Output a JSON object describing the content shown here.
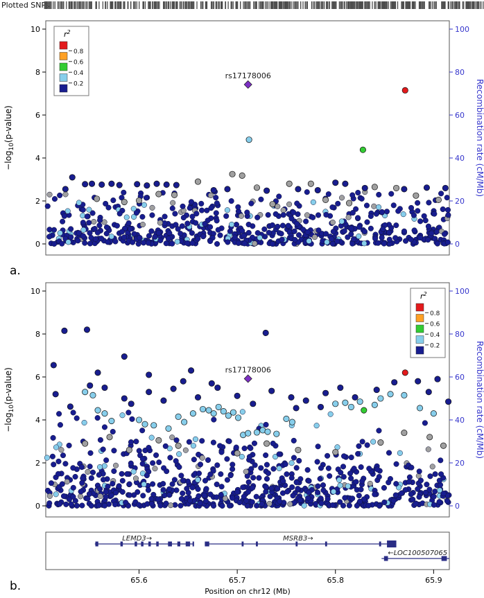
{
  "page": {
    "panel_a_label": "a.",
    "panel_b_label": "b."
  },
  "rug": {
    "label": "Plotted SNPs",
    "tick_count": 520,
    "seed": 7
  },
  "colors": {
    "r2_080_100": "#e31a1c",
    "r2_060_080": "#ffa024",
    "r2_040_060": "#33cc33",
    "r2_020_040": "#87ceeb",
    "r2_000_020": "#181d8f",
    "no_r2": "#a0a0a0",
    "lead": "#7c2fc4",
    "recomb_axis": "#3535cc",
    "rug_tick": "#4d4d4d",
    "gene": "#2a2d85",
    "frame": "#555555"
  },
  "legend": {
    "title_base": "r",
    "title_sup": "2",
    "swatch_colors": [
      "#e31a1c",
      "#ffa024",
      "#33cc33",
      "#87ceeb",
      "#181d8f"
    ],
    "boundary_labels": [
      "0.8",
      "0.6",
      "0.4",
      "0.2"
    ]
  },
  "axes": {
    "xlabel": "Position on chr12 (Mb)",
    "ylabel_parts": {
      "pre": "−log",
      "sub": "10",
      "post": "(p-value)"
    },
    "y2label": "Recombination rate (cM/Mb)",
    "xticks": [
      65.6,
      65.7,
      65.8,
      65.9
    ],
    "yticks": [
      0,
      2,
      4,
      6,
      8,
      10
    ],
    "y2ticks": [
      0,
      20,
      40,
      60,
      80,
      100
    ],
    "xlim": [
      65.505,
      65.916
    ],
    "ylim": [
      0,
      10.4
    ],
    "y2lim": [
      0,
      104
    ]
  },
  "chart_data": [
    {
      "id": "panelA",
      "type": "scatter",
      "seed": 101,
      "legend_pos": "left",
      "lead": {
        "x": 65.711,
        "y": 7.42,
        "label": "rs17178006"
      },
      "points": [
        [
          65.557,
          2.1,
          "na"
        ],
        [
          65.585,
          1.95,
          "na"
        ],
        [
          65.6,
          2.02,
          "na"
        ],
        [
          65.62,
          2.32,
          "na"
        ],
        [
          65.636,
          2.28,
          "na"
        ],
        [
          65.66,
          2.9,
          "na"
        ],
        [
          65.695,
          3.25,
          "na"
        ],
        [
          65.705,
          3.18,
          "na"
        ],
        [
          65.72,
          2.62,
          "na"
        ],
        [
          65.736,
          1.85,
          "na"
        ],
        [
          65.753,
          2.8,
          "na"
        ],
        [
          65.775,
          2.8,
          "na"
        ],
        [
          65.79,
          2.05,
          "na"
        ],
        [
          65.814,
          1.9,
          "na"
        ],
        [
          65.84,
          2.65,
          "na"
        ],
        [
          65.862,
          2.6,
          "na"
        ],
        [
          65.882,
          2.25,
          "na"
        ],
        [
          65.905,
          2.05,
          "na"
        ],
        [
          65.525,
          2.55,
          "r00"
        ],
        [
          65.532,
          3.1,
          "r00"
        ],
        [
          65.545,
          2.78,
          "r00"
        ],
        [
          65.552,
          2.8,
          "r00"
        ],
        [
          65.562,
          2.76,
          "r00"
        ],
        [
          65.572,
          2.8,
          "r00"
        ],
        [
          65.58,
          2.74,
          "r00"
        ],
        [
          65.598,
          2.78,
          "r00"
        ],
        [
          65.608,
          2.72,
          "r00"
        ],
        [
          65.618,
          2.8,
          "r00"
        ],
        [
          65.628,
          2.76,
          "r00"
        ],
        [
          65.638,
          2.74,
          "r00"
        ],
        [
          65.676,
          2.5,
          "r00"
        ],
        [
          65.69,
          2.55,
          "r00"
        ],
        [
          65.73,
          2.48,
          "r00"
        ],
        [
          65.762,
          2.55,
          "r00"
        ],
        [
          65.782,
          2.5,
          "r00"
        ],
        [
          65.8,
          2.85,
          "r00"
        ],
        [
          65.81,
          2.8,
          "r00"
        ],
        [
          65.83,
          2.6,
          "r00"
        ],
        [
          65.87,
          2.55,
          "r00"
        ],
        [
          65.893,
          2.62,
          "r00"
        ],
        [
          65.912,
          2.6,
          "r00"
        ],
        [
          65.712,
          4.85,
          "r02"
        ],
        [
          65.828,
          4.38,
          "r04"
        ],
        [
          65.871,
          7.15,
          "r08"
        ]
      ],
      "background": [
        {
          "count": 430,
          "y": [
            0,
            0.9
          ],
          "power": 1.4,
          "mix": {
            "r00": 0.9,
            "r02": 0.07,
            "na": 0.03
          }
        },
        {
          "count": 160,
          "y": [
            0.9,
            1.8
          ],
          "power": 1,
          "mix": {
            "r00": 0.75,
            "r02": 0.12,
            "na": 0.13
          }
        },
        {
          "count": 55,
          "y": [
            1.8,
            2.45
          ],
          "power": 1,
          "mix": {
            "r00": 0.72,
            "r02": 0.08,
            "na": 0.2
          }
        }
      ]
    },
    {
      "id": "panelB",
      "type": "scatter",
      "seed": 202,
      "legend_pos": "right",
      "lead": {
        "x": 65.711,
        "y": 5.92,
        "label": "rs17178006"
      },
      "points": [
        [
          65.545,
          2.9,
          "na"
        ],
        [
          65.57,
          3.2,
          "na"
        ],
        [
          65.59,
          2.6,
          "na"
        ],
        [
          65.62,
          3.05,
          "na"
        ],
        [
          65.64,
          2.8,
          "na"
        ],
        [
          65.7,
          2.45,
          "na"
        ],
        [
          65.73,
          2.9,
          "na"
        ],
        [
          65.762,
          2.6,
          "na"
        ],
        [
          65.8,
          2.5,
          "na"
        ],
        [
          65.846,
          2.95,
          "na"
        ],
        [
          65.87,
          3.4,
          "na"
        ],
        [
          65.896,
          3.2,
          "na"
        ],
        [
          65.91,
          2.8,
          "na"
        ],
        [
          65.524,
          8.15,
          "r00"
        ],
        [
          65.547,
          8.2,
          "r00"
        ],
        [
          65.729,
          8.05,
          "r00"
        ],
        [
          65.513,
          6.55,
          "r00"
        ],
        [
          65.585,
          6.95,
          "r00"
        ],
        [
          65.653,
          6.3,
          "r00"
        ],
        [
          65.558,
          6.2,
          "r00"
        ],
        [
          65.61,
          6.1,
          "r00"
        ],
        [
          65.645,
          5.8,
          "r00"
        ],
        [
          65.674,
          5.7,
          "r00"
        ],
        [
          65.884,
          5.8,
          "r00"
        ],
        [
          65.904,
          5.9,
          "r00"
        ],
        [
          65.515,
          5.2,
          "r00"
        ],
        [
          65.53,
          4.62,
          "r00"
        ],
        [
          65.55,
          5.6,
          "r00"
        ],
        [
          65.565,
          5.5,
          "r00"
        ],
        [
          65.585,
          5.0,
          "r00"
        ],
        [
          65.592,
          4.75,
          "r00"
        ],
        [
          65.61,
          5.3,
          "r00"
        ],
        [
          65.625,
          4.9,
          "r00"
        ],
        [
          65.635,
          5.45,
          "r00"
        ],
        [
          65.66,
          5.05,
          "r00"
        ],
        [
          65.68,
          5.5,
          "r00"
        ],
        [
          65.7,
          5.12,
          "r00"
        ],
        [
          65.716,
          4.75,
          "r00"
        ],
        [
          65.735,
          5.35,
          "r00"
        ],
        [
          65.755,
          5.05,
          "r00"
        ],
        [
          65.76,
          4.55,
          "r00"
        ],
        [
          65.77,
          4.9,
          "r00"
        ],
        [
          65.785,
          4.6,
          "r00"
        ],
        [
          65.79,
          5.25,
          "r00"
        ],
        [
          65.805,
          5.5,
          "r00"
        ],
        [
          65.82,
          5.05,
          "r00"
        ],
        [
          65.842,
          5.4,
          "r00"
        ],
        [
          65.86,
          5.75,
          "r00"
        ],
        [
          65.895,
          5.3,
          "r00"
        ],
        [
          65.915,
          4.85,
          "r00"
        ],
        [
          65.545,
          5.3,
          "r02"
        ],
        [
          65.553,
          5.15,
          "r02"
        ],
        [
          65.558,
          4.45,
          "r02"
        ],
        [
          65.565,
          4.3,
          "r02"
        ],
        [
          65.572,
          3.95,
          "r02"
        ],
        [
          65.6,
          4.0,
          "r02"
        ],
        [
          65.606,
          3.8,
          "r02"
        ],
        [
          65.615,
          3.75,
          "r02"
        ],
        [
          65.63,
          3.6,
          "r02"
        ],
        [
          65.64,
          4.15,
          "r02"
        ],
        [
          65.646,
          3.9,
          "r02"
        ],
        [
          65.655,
          4.3,
          "r02"
        ],
        [
          65.665,
          4.5,
          "r02"
        ],
        [
          65.671,
          4.45,
          "r02"
        ],
        [
          65.676,
          4.3,
          "r02"
        ],
        [
          65.681,
          4.6,
          "r02"
        ],
        [
          65.686,
          4.4,
          "r02"
        ],
        [
          65.691,
          4.2,
          "r02"
        ],
        [
          65.696,
          4.35,
          "r02"
        ],
        [
          65.701,
          4.1,
          "r02"
        ],
        [
          65.706,
          3.3,
          "r02"
        ],
        [
          65.711,
          3.38,
          "r02"
        ],
        [
          65.72,
          3.42,
          "r02"
        ],
        [
          65.726,
          3.52,
          "r02"
        ],
        [
          65.731,
          3.45,
          "r02"
        ],
        [
          65.74,
          3.35,
          "r02"
        ],
        [
          65.75,
          4.05,
          "r02"
        ],
        [
          65.756,
          3.9,
          "r02"
        ],
        [
          65.8,
          4.75,
          "r02"
        ],
        [
          65.81,
          4.8,
          "r02"
        ],
        [
          65.816,
          4.6,
          "r02"
        ],
        [
          65.825,
          4.85,
          "r02"
        ],
        [
          65.84,
          4.7,
          "r02"
        ],
        [
          65.846,
          5.0,
          "r02"
        ],
        [
          65.856,
          5.2,
          "r02"
        ],
        [
          65.87,
          5.15,
          "r02"
        ],
        [
          65.886,
          4.55,
          "r02"
        ],
        [
          65.9,
          4.3,
          "r02"
        ],
        [
          65.829,
          4.45,
          "r04"
        ],
        [
          65.871,
          6.2,
          "r08"
        ]
      ],
      "background": [
        {
          "count": 430,
          "y": [
            0,
            1.0
          ],
          "power": 1.4,
          "mix": {
            "r00": 0.9,
            "r02": 0.06,
            "na": 0.04
          }
        },
        {
          "count": 190,
          "y": [
            1.0,
            2.0
          ],
          "power": 1,
          "mix": {
            "r00": 0.8,
            "r02": 0.1,
            "na": 0.1
          }
        },
        {
          "count": 95,
          "y": [
            2.0,
            3.2
          ],
          "power": 1,
          "mix": {
            "r00": 0.75,
            "r02": 0.13,
            "na": 0.12
          }
        },
        {
          "count": 22,
          "y": [
            3.2,
            4.4
          ],
          "power": 1,
          "mix": {
            "r00": 0.65,
            "r02": 0.35
          }
        }
      ]
    },
    {
      "id": "geneTrack",
      "type": "gene-track",
      "genes": [
        {
          "name": "LEMD3→",
          "row": 0,
          "start": 65.555,
          "end": 65.656,
          "label_x": 65.598,
          "label_anchor": "middle",
          "exons": [
            [
              65.5555,
              65.5585
            ],
            [
              65.581,
              65.5835
            ],
            [
              65.5955,
              65.598
            ],
            [
              65.602,
              65.6045
            ],
            [
              65.6095,
              65.612
            ],
            [
              65.6175,
              65.62
            ],
            [
              65.6295,
              65.6335
            ],
            [
              65.639,
              65.642
            ],
            [
              65.6475,
              65.652
            ],
            [
              65.6545,
              65.656
            ]
          ]
        },
        {
          "name": "MSRB3→",
          "row": 0,
          "start": 65.667,
          "end": 65.862,
          "label_x": 65.762,
          "label_anchor": "middle",
          "exons": [
            [
              65.667,
              65.6715
            ],
            [
              65.7045,
              65.7065
            ],
            [
              65.719,
              65.721
            ],
            [
              65.7595,
              65.7615
            ],
            [
              65.7895,
              65.7915
            ],
            [
              65.8445,
              65.8465
            ],
            [
              65.8525,
              65.862,
              10
            ]
          ]
        },
        {
          "name": "←LOC100507065",
          "row": 1,
          "start": 65.847,
          "end": 65.916,
          "label_x": 65.914,
          "label_anchor": "end",
          "exons": [
            [
              65.8495,
              65.8535
            ],
            [
              65.908,
              65.9135
            ]
          ]
        }
      ]
    }
  ]
}
